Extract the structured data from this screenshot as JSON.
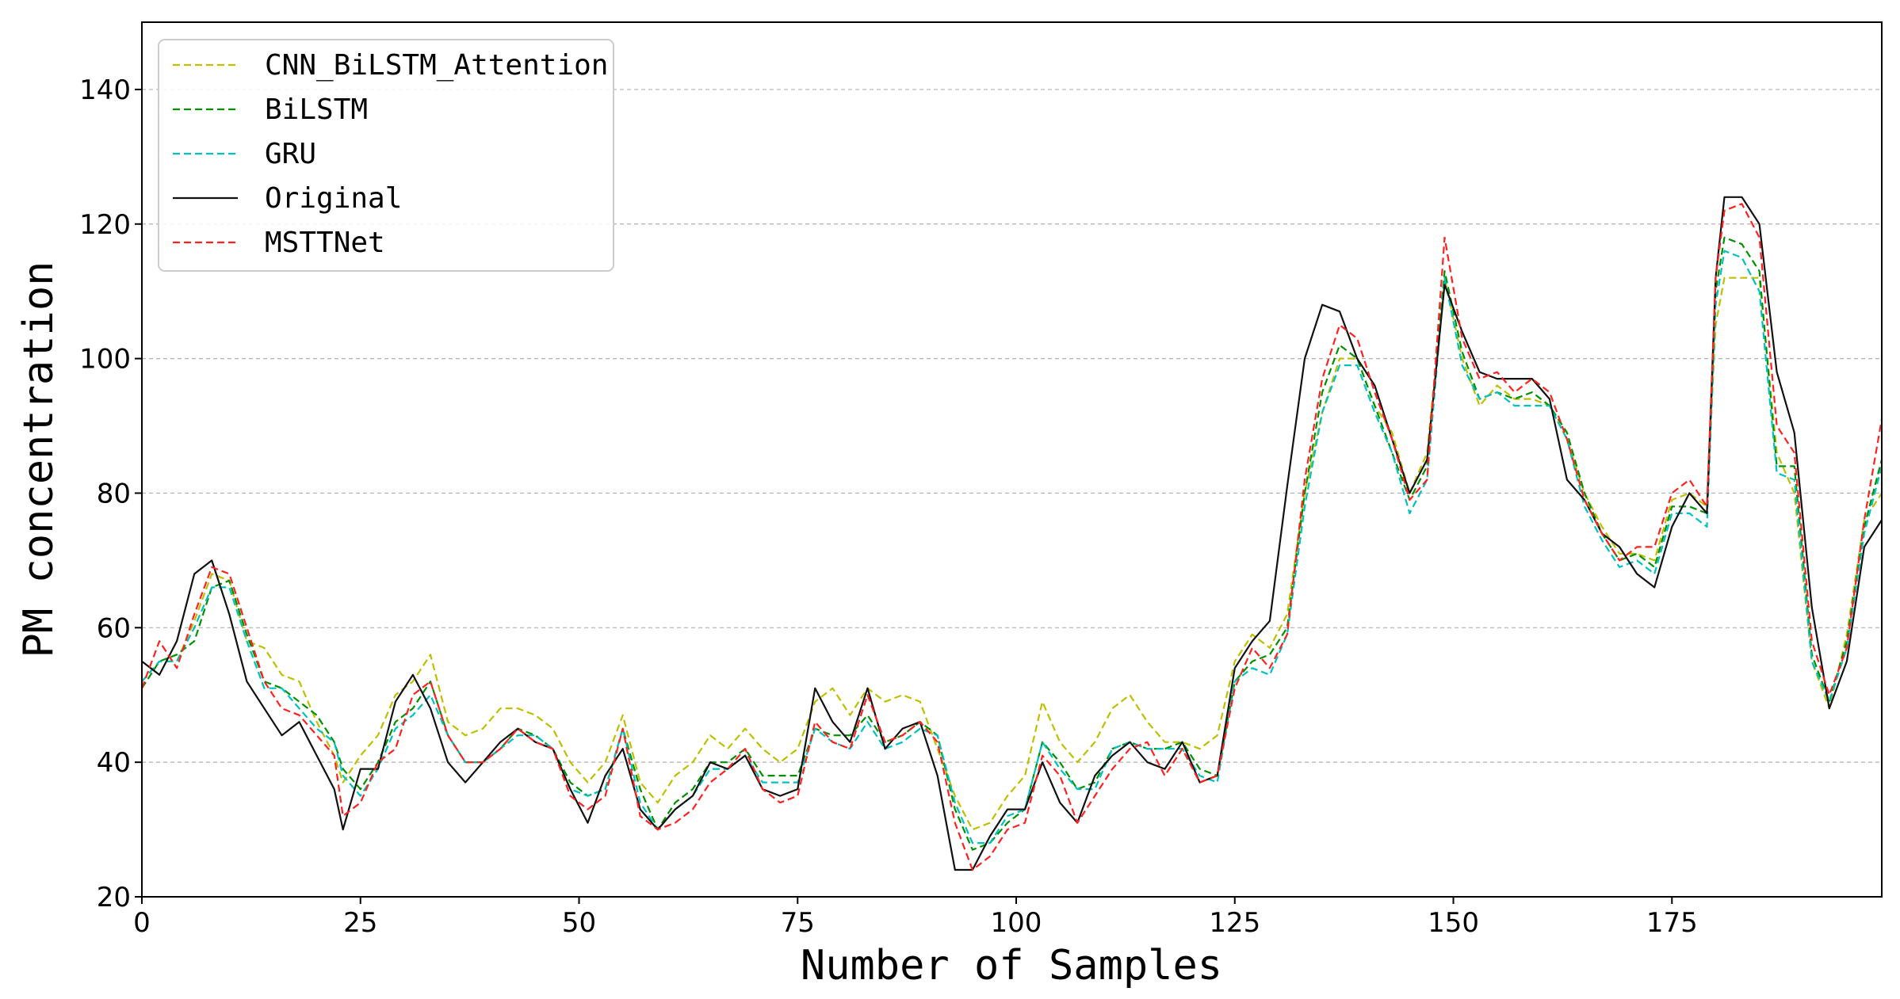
{
  "chart_data": {
    "type": "line",
    "xlabel": "Number of Samples",
    "ylabel": "PM concentration",
    "xlim": [
      0,
      199
    ],
    "ylim": [
      20,
      150
    ],
    "xticks": [
      0,
      25,
      50,
      75,
      100,
      125,
      150,
      175
    ],
    "yticks": [
      20,
      40,
      60,
      80,
      100,
      120,
      140
    ],
    "grid": "horizontal dashed",
    "legend_position": "top-left",
    "x": [
      0,
      2,
      4,
      6,
      8,
      10,
      12,
      14,
      16,
      18,
      20,
      22,
      23,
      25,
      27,
      29,
      31,
      33,
      35,
      37,
      39,
      41,
      43,
      45,
      47,
      49,
      51,
      53,
      55,
      57,
      59,
      61,
      63,
      65,
      67,
      69,
      71,
      73,
      75,
      77,
      79,
      81,
      83,
      85,
      87,
      89,
      91,
      93,
      95,
      97,
      99,
      101,
      103,
      105,
      107,
      109,
      111,
      113,
      115,
      117,
      119,
      121,
      123,
      125,
      127,
      129,
      131,
      133,
      135,
      137,
      139,
      141,
      143,
      145,
      147,
      149,
      151,
      153,
      155,
      157,
      159,
      161,
      163,
      165,
      167,
      169,
      171,
      173,
      175,
      177,
      179,
      180,
      181,
      183,
      185,
      187,
      189,
      191,
      193,
      195,
      197,
      199
    ],
    "series": [
      {
        "name": "CNN_BiLSTM_Attention",
        "color": "#bfbf00",
        "dash": "dashed",
        "values": [
          52,
          55,
          55,
          61,
          68,
          67,
          58,
          57,
          53,
          52,
          46,
          41,
          37,
          41,
          44,
          50,
          52,
          56,
          46,
          44,
          45,
          48,
          48,
          47,
          45,
          40,
          37,
          40,
          47,
          37,
          34,
          38,
          40,
          44,
          42,
          45,
          42,
          40,
          42,
          49,
          51,
          47,
          51,
          49,
          50,
          49,
          42,
          35,
          30,
          31,
          35,
          38,
          49,
          43,
          40,
          43,
          48,
          50,
          46,
          43,
          43,
          42,
          44,
          55,
          59,
          57,
          62,
          80,
          92,
          100,
          100,
          93,
          89,
          80,
          86,
          112,
          100,
          93,
          96,
          94,
          94,
          93,
          88,
          80,
          75,
          71,
          71,
          70,
          79,
          80,
          78,
          105,
          112,
          112,
          112,
          86,
          80,
          55,
          48,
          59,
          76,
          80
        ]
      },
      {
        "name": "BiLSTM",
        "color": "#009000",
        "dash": "dashed",
        "values": [
          51,
          55,
          56,
          58,
          66,
          67,
          59,
          52,
          51,
          49,
          47,
          43,
          39,
          36,
          40,
          46,
          48,
          52,
          44,
          40,
          40,
          42,
          45,
          44,
          42,
          37,
          35,
          36,
          45,
          36,
          30,
          34,
          36,
          40,
          40,
          42,
          38,
          38,
          38,
          45,
          44,
          44,
          47,
          43,
          44,
          46,
          44,
          33,
          27,
          28,
          31,
          33,
          43,
          40,
          36,
          37,
          42,
          43,
          42,
          42,
          43,
          39,
          38,
          52,
          55,
          56,
          60,
          80,
          95,
          102,
          100,
          93,
          86,
          79,
          84,
          113,
          101,
          94,
          95,
          94,
          95,
          93,
          89,
          80,
          74,
          70,
          71,
          69,
          78,
          78,
          77,
          110,
          118,
          117,
          113,
          84,
          84,
          56,
          49,
          58,
          75,
          85
        ]
      },
      {
        "name": "GRU",
        "color": "#00c0c0",
        "dash": "dashed",
        "values": [
          52,
          55,
          55,
          60,
          66,
          66,
          58,
          51,
          51,
          48,
          45,
          43,
          38,
          35,
          39,
          45,
          47,
          50,
          44,
          40,
          40,
          42,
          44,
          44,
          42,
          36,
          35,
          36,
          45,
          34,
          30,
          33,
          35,
          39,
          39,
          41,
          37,
          37,
          37,
          45,
          43,
          42,
          46,
          42,
          43,
          45,
          44,
          34,
          28,
          28,
          32,
          33,
          43,
          39,
          36,
          36,
          42,
          43,
          42,
          42,
          42,
          38,
          37,
          52,
          54,
          53,
          59,
          78,
          92,
          99,
          99,
          92,
          86,
          77,
          82,
          112,
          99,
          94,
          95,
          93,
          93,
          93,
          88,
          78,
          73,
          69,
          70,
          68,
          77,
          77,
          75,
          108,
          116,
          115,
          110,
          83,
          82,
          55,
          49,
          57,
          74,
          84
        ]
      },
      {
        "name": "Original",
        "color": "#111111",
        "dash": "solid",
        "values": [
          55,
          53,
          58,
          68,
          70,
          62,
          52,
          48,
          44,
          46,
          41,
          36,
          30,
          39,
          39,
          49,
          53,
          48,
          40,
          37,
          40,
          43,
          45,
          43,
          42,
          36,
          31,
          38,
          42,
          33,
          30,
          33,
          35,
          40,
          39,
          41,
          36,
          35,
          36,
          51,
          46,
          43,
          51,
          42,
          45,
          46,
          38,
          24,
          24,
          29,
          33,
          33,
          40,
          34,
          31,
          38,
          41,
          43,
          40,
          39,
          43,
          37,
          38,
          54,
          58,
          61,
          81,
          100,
          108,
          107,
          100,
          96,
          88,
          80,
          85,
          111,
          104,
          98,
          97,
          97,
          97,
          94,
          82,
          79,
          74,
          72,
          68,
          66,
          75,
          80,
          77,
          112,
          124,
          124,
          120,
          98,
          89,
          63,
          48,
          55,
          72,
          76
        ]
      },
      {
        "name": "MSTTNet",
        "color": "#ff2020",
        "dash": "dashed",
        "values": [
          51,
          58,
          54,
          62,
          69,
          68,
          60,
          52,
          48,
          47,
          44,
          41,
          32,
          34,
          40,
          42,
          50,
          52,
          44,
          40,
          40,
          42,
          45,
          43,
          42,
          35,
          33,
          35,
          45,
          32,
          30,
          31,
          33,
          37,
          39,
          42,
          36,
          34,
          35,
          46,
          43,
          42,
          50,
          43,
          44,
          46,
          43,
          31,
          24,
          26,
          30,
          31,
          41,
          38,
          31,
          35,
          39,
          42,
          43,
          38,
          42,
          37,
          38,
          51,
          57,
          54,
          59,
          82,
          97,
          105,
          103,
          95,
          88,
          79,
          82,
          118,
          103,
          97,
          98,
          95,
          97,
          95,
          88,
          79,
          74,
          70,
          72,
          72,
          80,
          82,
          78,
          112,
          122,
          123,
          118,
          90,
          86,
          58,
          50,
          57,
          76,
          91
        ]
      }
    ]
  }
}
